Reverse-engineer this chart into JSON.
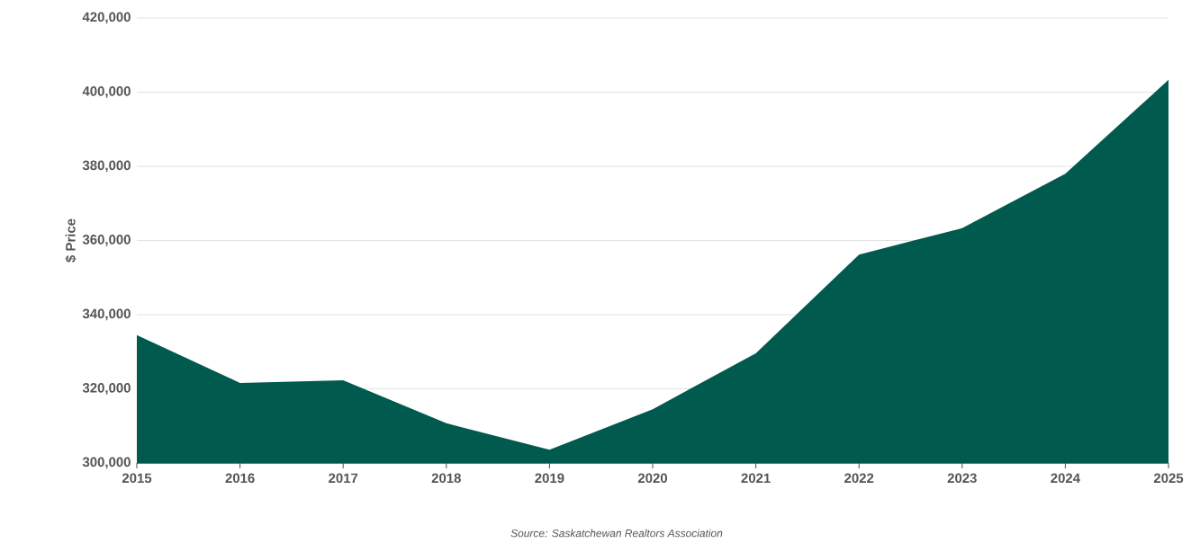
{
  "chart_data": {
    "type": "area",
    "ylabel": "$ Price",
    "categories": [
      "2015",
      "2016",
      "2017",
      "2018",
      "2019",
      "2020",
      "2021",
      "2022",
      "2023",
      "2024",
      "2025"
    ],
    "values": [
      334500,
      321600,
      322300,
      310700,
      303600,
      314500,
      329600,
      356200,
      363300,
      378000,
      403300
    ],
    "color": "#005a4e",
    "ylim": [
      300000,
      420000
    ],
    "yticks": [
      {
        "value": 300000,
        "label": "300,000"
      },
      {
        "value": 320000,
        "label": "320,000"
      },
      {
        "value": 340000,
        "label": "340,000"
      },
      {
        "value": 360000,
        "label": "360,000"
      },
      {
        "value": 380000,
        "label": "380,000"
      },
      {
        "value": 400000,
        "label": "400,000"
      },
      {
        "value": 420000,
        "label": "420,000"
      }
    ],
    "grid": "y",
    "annotations": [
      "Source: Saskatchewan Realtors Association"
    ]
  }
}
